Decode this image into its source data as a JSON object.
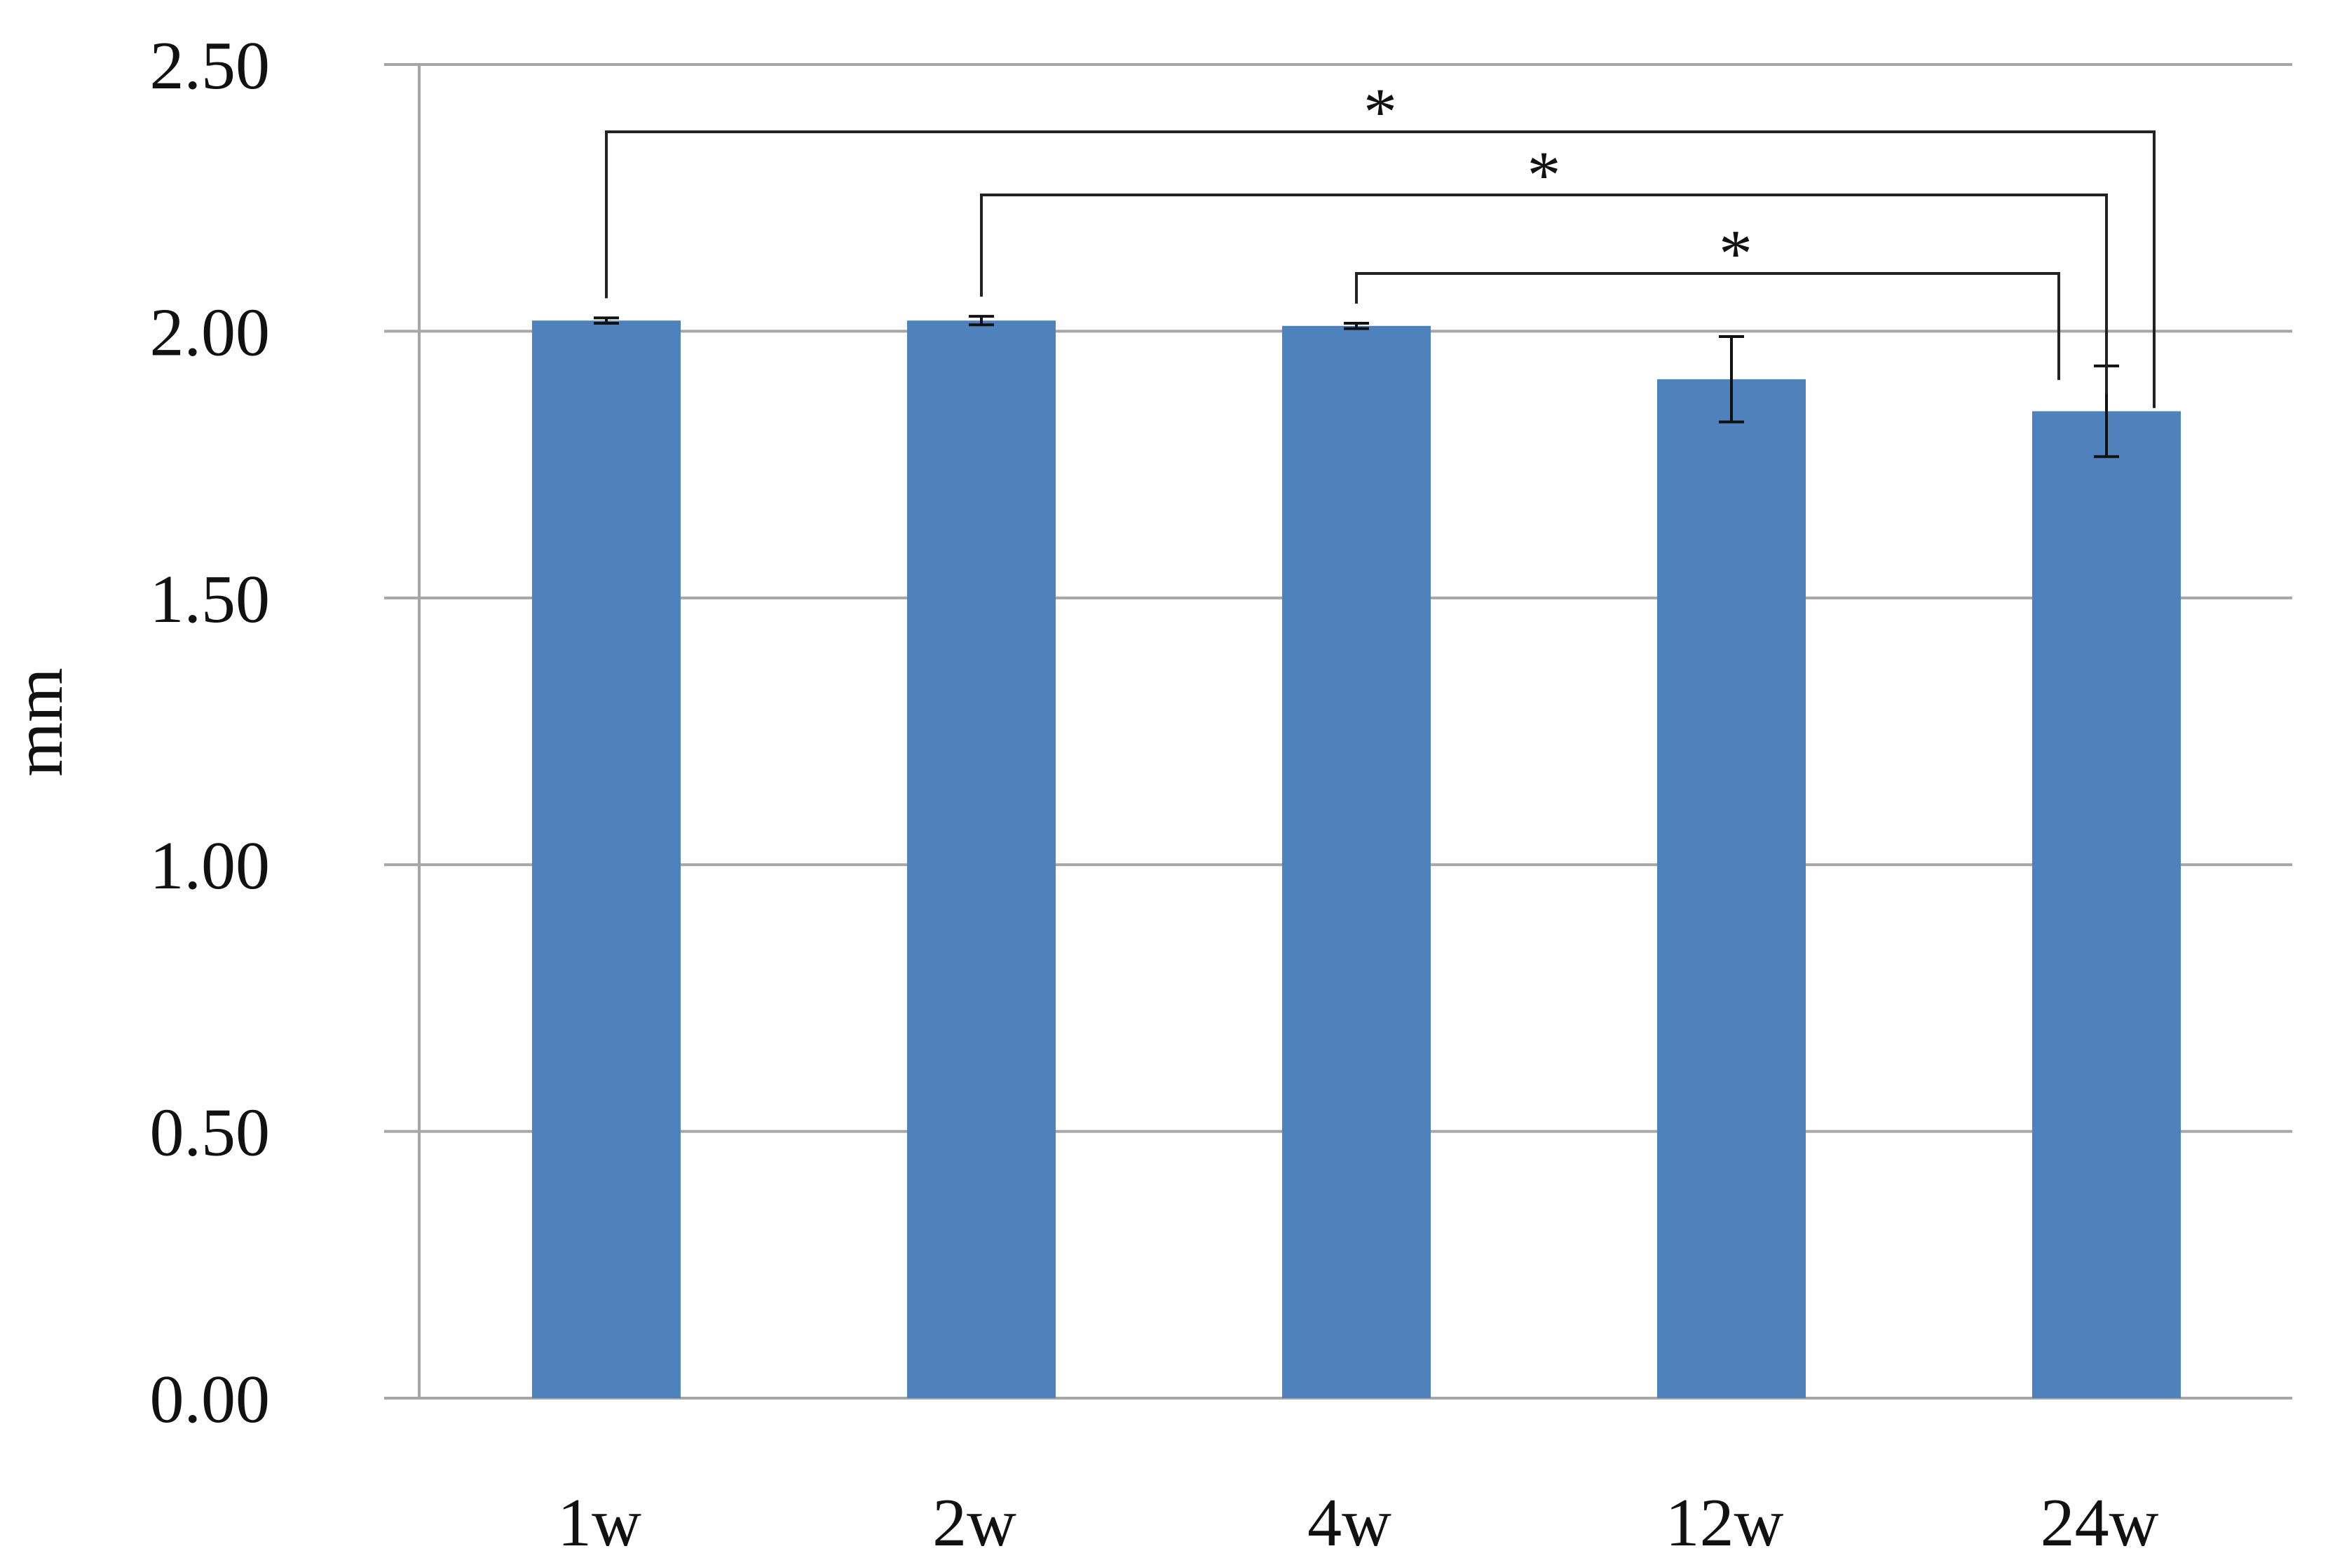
{
  "chart_data": {
    "type": "bar",
    "title": "",
    "xlabel": "",
    "ylabel": "mm",
    "ylim": [
      0,
      2.5
    ],
    "yticks": [
      "0.00",
      "0.50",
      "1.00",
      "1.50",
      "2.00",
      "2.50"
    ],
    "grid": true,
    "legend": "none",
    "categories": [
      "1w",
      "2w",
      "4w",
      "12w",
      "24w"
    ],
    "series": [
      {
        "values": [
          2.02,
          2.02,
          2.01,
          1.91,
          1.85
        ],
        "errors": [
          0.005,
          0.008,
          0.005,
          0.08,
          0.085
        ],
        "color": "#4f81bd"
      }
    ],
    "significance": [
      {
        "from": "1w",
        "to": "24w",
        "label": "*"
      },
      {
        "from": "2w",
        "to": "24w",
        "label": "*"
      },
      {
        "from": "4w",
        "to": "24w",
        "label": "*"
      }
    ]
  }
}
